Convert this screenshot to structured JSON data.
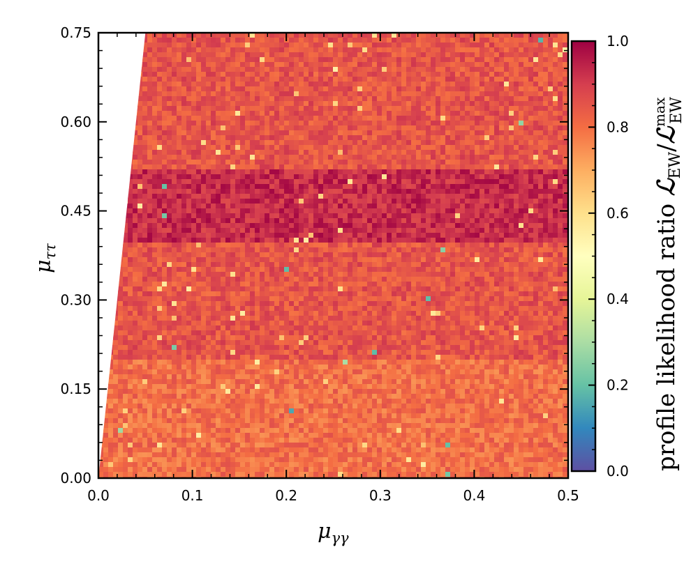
{
  "chart_data": {
    "type": "heatmap",
    "title": "",
    "xlabel_main": "μ",
    "xlabel_sub": "γγ",
    "ylabel_main": "μ",
    "ylabel_sub": "ττ",
    "xlim": [
      0.0,
      0.5
    ],
    "ylim": [
      0.0,
      0.75
    ],
    "x_ticks": [
      "0.0",
      "0.1",
      "0.2",
      "0.3",
      "0.4",
      "0.5"
    ],
    "y_ticks": [
      "0.00",
      "0.15",
      "0.30",
      "0.45",
      "0.60",
      "0.75"
    ],
    "colorbar": {
      "label_text": "profile likelihood ratio ",
      "label_L": "ℒ",
      "label_sub": "EW",
      "label_sup": "max",
      "range": [
        0.0,
        1.0
      ],
      "ticks": [
        "0.0",
        "0.2",
        "0.4",
        "0.6",
        "0.8",
        "1.0"
      ],
      "colormap": "Spectral_r",
      "colors": [
        "#5e4fa2",
        "#3288bd",
        "#66c2a5",
        "#abdda4",
        "#e6f598",
        "#ffffbf",
        "#fee08b",
        "#fdae61",
        "#f46d43",
        "#d53e4f",
        "#9e0142"
      ]
    },
    "allowed_region_boundary": [
      [
        0.0,
        0.0
      ],
      [
        0.05,
        0.75
      ]
    ],
    "grid": false,
    "description_bands": [
      {
        "y_range": [
          0.0,
          0.2
        ],
        "typical_ratio": 0.8
      },
      {
        "y_range": [
          0.2,
          0.4
        ],
        "typical_ratio": 0.85
      },
      {
        "y_range": [
          0.4,
          0.52
        ],
        "typical_ratio": 0.93
      },
      {
        "y_range": [
          0.52,
          0.75
        ],
        "typical_ratio": 0.85
      }
    ]
  }
}
